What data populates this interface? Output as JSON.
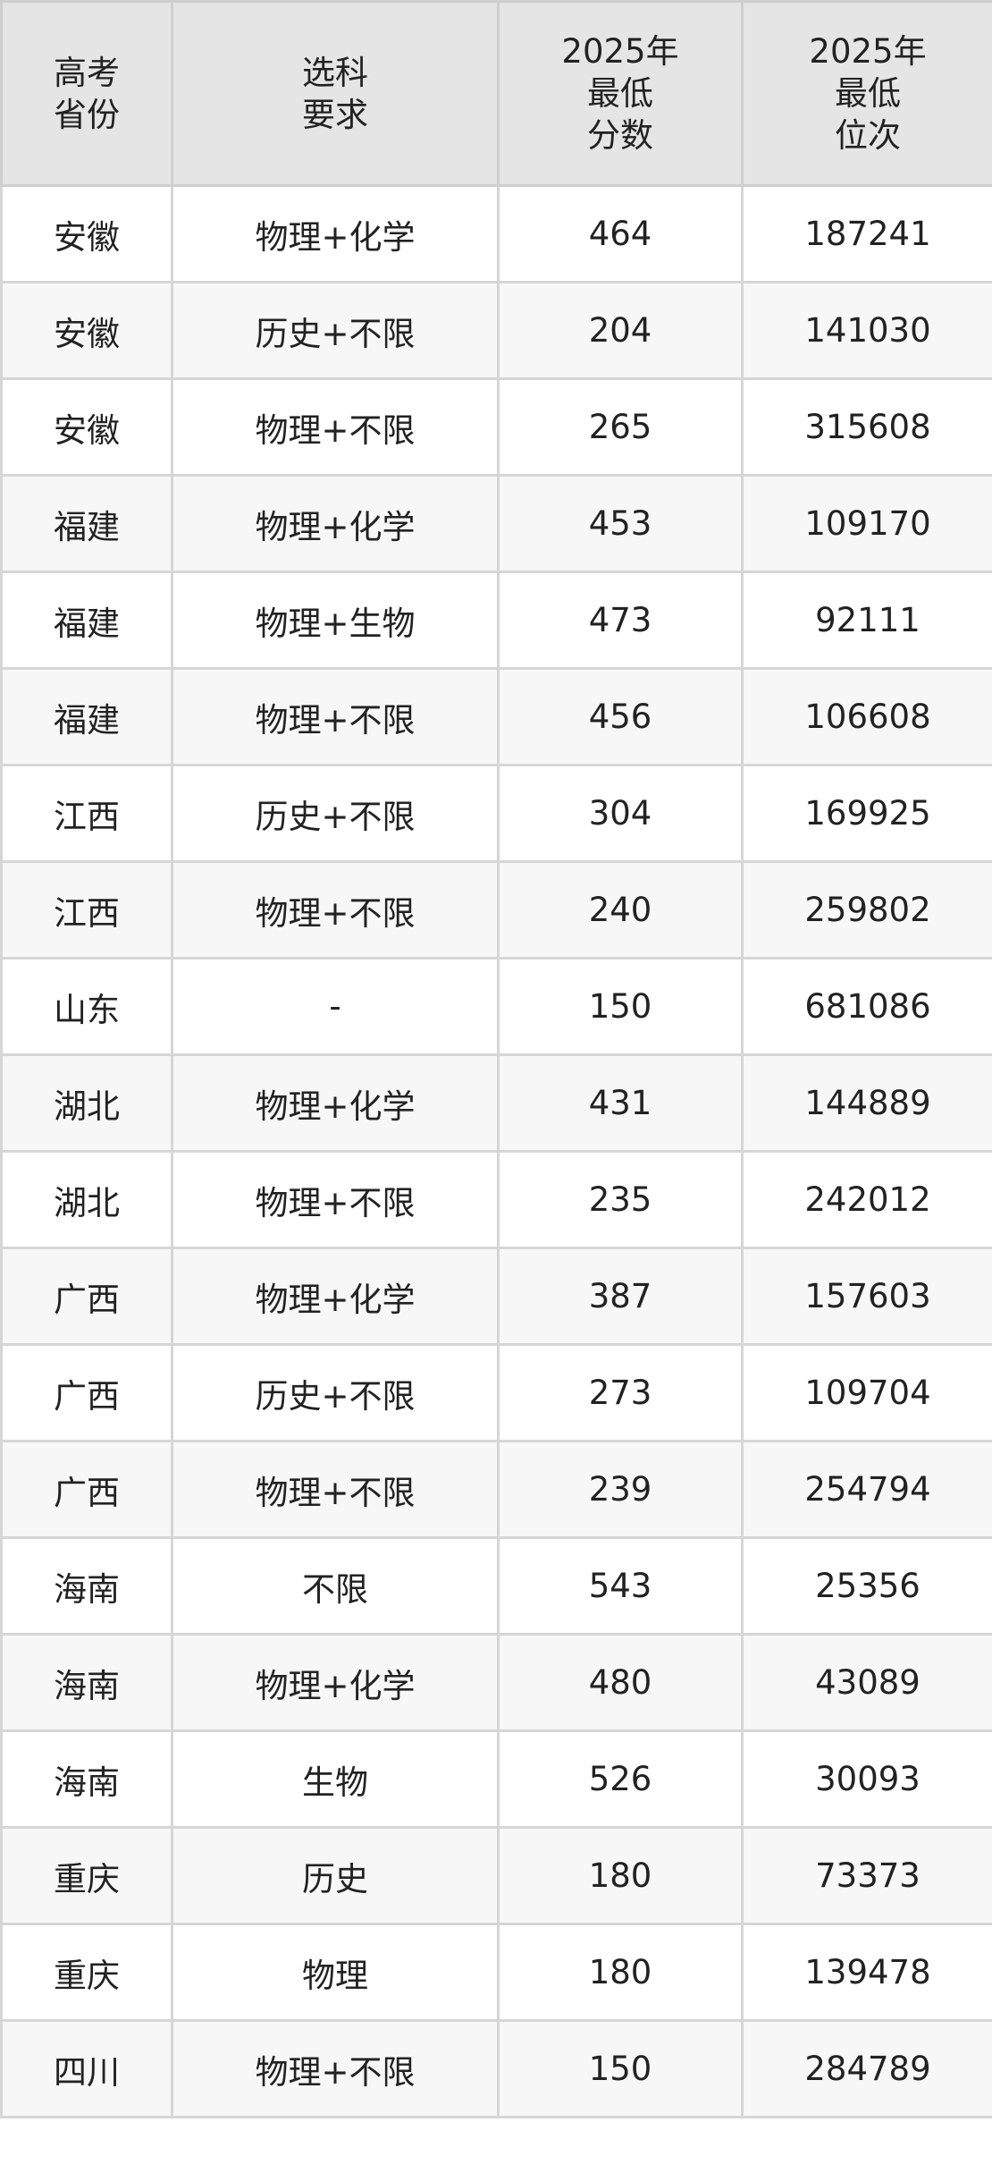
{
  "header": {
    "col1": [
      "高考",
      "省份"
    ],
    "col2": [
      "选科",
      "要求"
    ],
    "col3": [
      "2025年",
      "最低",
      "分数"
    ],
    "col4": [
      "2025年",
      "最低",
      "位次"
    ]
  },
  "rows": [
    {
      "province": "安徽",
      "subjects": "物理+化学",
      "score": "464",
      "rank": "187241"
    },
    {
      "province": "安徽",
      "subjects": "历史+不限",
      "score": "204",
      "rank": "141030"
    },
    {
      "province": "安徽",
      "subjects": "物理+不限",
      "score": "265",
      "rank": "315608"
    },
    {
      "province": "福建",
      "subjects": "物理+化学",
      "score": "453",
      "rank": "109170"
    },
    {
      "province": "福建",
      "subjects": "物理+生物",
      "score": "473",
      "rank": "92111"
    },
    {
      "province": "福建",
      "subjects": "物理+不限",
      "score": "456",
      "rank": "106608"
    },
    {
      "province": "江西",
      "subjects": "历史+不限",
      "score": "304",
      "rank": "169925"
    },
    {
      "province": "江西",
      "subjects": "物理+不限",
      "score": "240",
      "rank": "259802"
    },
    {
      "province": "山东",
      "subjects": "-",
      "score": "150",
      "rank": "681086"
    },
    {
      "province": "湖北",
      "subjects": "物理+化学",
      "score": "431",
      "rank": "144889"
    },
    {
      "province": "湖北",
      "subjects": "物理+不限",
      "score": "235",
      "rank": "242012"
    },
    {
      "province": "广西",
      "subjects": "物理+化学",
      "score": "387",
      "rank": "157603"
    },
    {
      "province": "广西",
      "subjects": "历史+不限",
      "score": "273",
      "rank": "109704"
    },
    {
      "province": "广西",
      "subjects": "物理+不限",
      "score": "239",
      "rank": "254794"
    },
    {
      "province": "海南",
      "subjects": "不限",
      "score": "543",
      "rank": "25356"
    },
    {
      "province": "海南",
      "subjects": "物理+化学",
      "score": "480",
      "rank": "43089"
    },
    {
      "province": "海南",
      "subjects": "生物",
      "score": "526",
      "rank": "30093"
    },
    {
      "province": "重庆",
      "subjects": "历史",
      "score": "180",
      "rank": "73373"
    },
    {
      "province": "重庆",
      "subjects": "物理",
      "score": "180",
      "rank": "139478"
    },
    {
      "province": "四川",
      "subjects": "物理+不限",
      "score": "150",
      "rank": "284789"
    }
  ]
}
